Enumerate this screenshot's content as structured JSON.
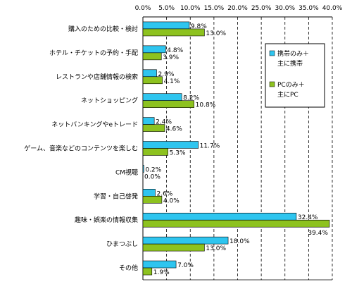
{
  "chart_data": {
    "type": "bar",
    "orientation": "horizontal",
    "title": "",
    "xlabel": "",
    "ylabel": "",
    "xlim": [
      0,
      40
    ],
    "x_ticks": [
      "0.0%",
      "5.0%",
      "10.0%",
      "15.0%",
      "20.0%",
      "25.0%",
      "30.0%",
      "35.0%",
      "40.0%"
    ],
    "x_tick_values": [
      0,
      5,
      10,
      15,
      20,
      25,
      30,
      35,
      40
    ],
    "axis_position": "top",
    "grid": "vertical dashed",
    "legend_position": "right",
    "categories": [
      "購入のための比較・検討",
      "ホテル・チケットの予約・手配",
      "レストランや店舗情報の検索",
      "ネットショッピング",
      "ネットバンキングやeトレード",
      "ゲーム、音楽などのコンテンツを楽しむ",
      "CM視聴",
      "学習・自己啓発",
      "趣味・娯楽の情報収集",
      "ひまつぶし",
      "その他"
    ],
    "series": [
      {
        "name": "携帯のみ＋主に携帯",
        "legend_lines": [
          "携帯のみ＋",
          "主に携帯"
        ],
        "color": "#2ec5ef",
        "values": [
          9.8,
          4.8,
          2.9,
          8.2,
          2.4,
          11.7,
          0.2,
          2.6,
          32.4,
          18.0,
          7.0
        ],
        "labels": [
          "9.8%",
          "4.8%",
          "2.9%",
          "8.2%",
          "2.4%",
          "11.7%",
          "0.2%",
          "2.6%",
          "32.4%",
          "18.0%",
          "7.0%"
        ]
      },
      {
        "name": "PCのみ＋主にPC",
        "legend_lines": [
          "PCのみ＋",
          "主にPC"
        ],
        "color": "#8dc21f",
        "values": [
          13.0,
          3.9,
          4.1,
          10.8,
          4.6,
          5.3,
          0.0,
          4.0,
          39.4,
          13.0,
          1.9
        ],
        "labels": [
          "13.0%",
          "3.9%",
          "4.1%",
          "10.8%",
          "4.6%",
          "5.3%",
          "0.0%",
          "4.0%",
          "39.4%",
          "13.0%",
          "1.9%"
        ]
      }
    ]
  }
}
